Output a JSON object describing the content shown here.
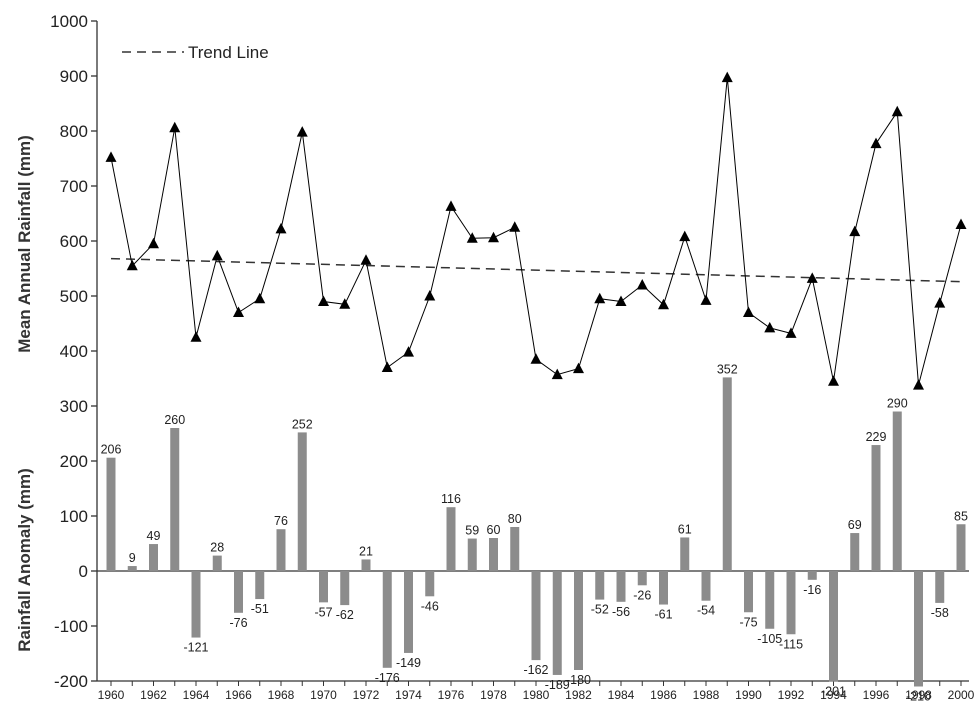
{
  "chart_data": {
    "type": "line+bar",
    "x": [
      1960,
      1961,
      1962,
      1963,
      1964,
      1965,
      1966,
      1967,
      1968,
      1969,
      1970,
      1971,
      1972,
      1973,
      1974,
      1975,
      1976,
      1977,
      1978,
      1979,
      1980,
      1981,
      1982,
      1983,
      1984,
      1985,
      1986,
      1987,
      1988,
      1989,
      1990,
      1991,
      1992,
      1993,
      1994,
      1995,
      1996,
      1997,
      1998,
      1999,
      2000
    ],
    "x_tick_labels": [
      "1960",
      "1962",
      "1964",
      "1966",
      "1968",
      "1970",
      "1972",
      "1974",
      "1976",
      "1978",
      "1980",
      "1982",
      "1984",
      "1986",
      "1988",
      "1990",
      "1992",
      "1994",
      "1996",
      "1998",
      "2000"
    ],
    "y_ticks": [
      "-200",
      "-100",
      "0",
      "100",
      "200",
      "300",
      "400",
      "500",
      "600",
      "700",
      "800",
      "900",
      "1000"
    ],
    "ylim": [
      -200,
      1000
    ],
    "ylabel_top": "Mean Annual Rainfall (mm)",
    "ylabel_bottom": "Rainfall Anomaly (mm)",
    "legend": {
      "trend_label": "Trend Line",
      "position": "top-left"
    },
    "rainfall": [
      752,
      555,
      595,
      806,
      425,
      573,
      470,
      495,
      622,
      798,
      490,
      485,
      565,
      370,
      398,
      500,
      663,
      605,
      606,
      625,
      385,
      357,
      368,
      495,
      490,
      520,
      484,
      608,
      492,
      897,
      470,
      442,
      432,
      532,
      345,
      617,
      777,
      835,
      338,
      487,
      630
    ],
    "trend_line": {
      "start": [
        1960,
        568
      ],
      "end": [
        2000,
        526
      ]
    },
    "anomaly": [
      206,
      9,
      49,
      260,
      -121,
      28,
      -76,
      -51,
      76,
      252,
      -57,
      -62,
      21,
      -176,
      -149,
      -46,
      116,
      59,
      60,
      80,
      -162,
      -189,
      -180,
      -52,
      -56,
      -26,
      -61,
      61,
      -54,
      352,
      -75,
      -105,
      -115,
      -16,
      -201,
      69,
      229,
      290,
      -210,
      -58,
      85
    ],
    "colors": {
      "bars": "#8c8c8c",
      "line": "#000000",
      "axis": "#333333"
    }
  }
}
